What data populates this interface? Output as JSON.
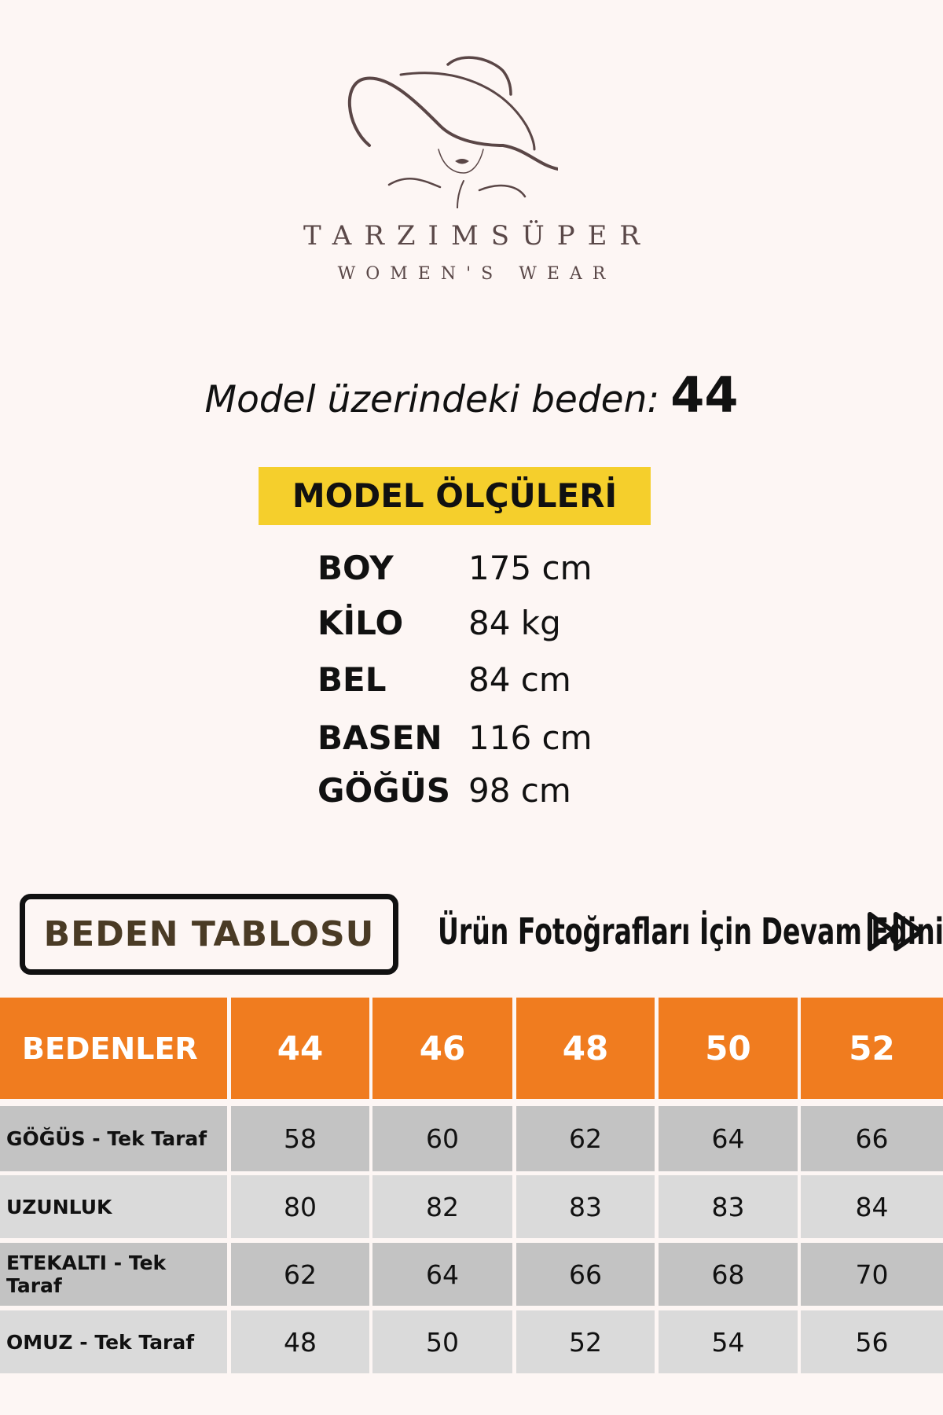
{
  "brand": {
    "name": "TARZIMSÜPER",
    "tagline": "WOMEN'S WEAR",
    "logo_icon": "woman-with-hat-logo"
  },
  "model": {
    "label": "Model üzerindeki beden:",
    "size": "44"
  },
  "measurements": {
    "title": "MODEL ÖLÇÜLERİ",
    "items": [
      {
        "key": "BOY",
        "value": "175 cm"
      },
      {
        "key": "KİLO",
        "value": "84 kg"
      },
      {
        "key": "BEL",
        "value": "84 cm"
      },
      {
        "key": "BASEN",
        "value": "116 cm"
      },
      {
        "key": "GÖĞÜS",
        "value": "98 cm"
      }
    ]
  },
  "size_table_button": "BEDEN TABLOSU",
  "continue_text": "Ürün Fotoğrafları İçin Devam Ediniz",
  "continue_icon": "fast-forward-icon",
  "colors": {
    "header": "#f07c1f",
    "highlight": "#f5cf2c",
    "row_dark": "#c3c3c3",
    "row_light": "#dadada"
  },
  "table": {
    "headers": [
      "BEDENLER",
      "44",
      "46",
      "48",
      "50",
      "52"
    ],
    "rows": [
      {
        "label": "GÖĞÜS - Tek Taraf",
        "values": [
          "58",
          "60",
          "62",
          "64",
          "66"
        ]
      },
      {
        "label": "UZUNLUK",
        "values": [
          "80",
          "82",
          "83",
          "83",
          "84"
        ]
      },
      {
        "label": "ETEKALTI - Tek Taraf",
        "values": [
          "62",
          "64",
          "66",
          "68",
          "70"
        ]
      },
      {
        "label": "OMUZ - Tek Taraf",
        "values": [
          "48",
          "50",
          "52",
          "54",
          "56"
        ]
      }
    ]
  }
}
